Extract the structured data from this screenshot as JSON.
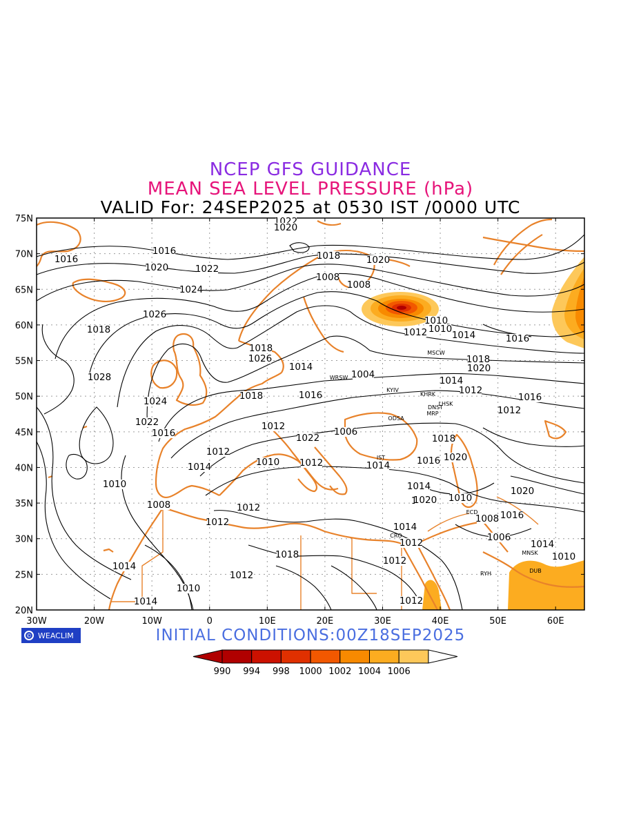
{
  "titles": {
    "line1": "NCEP GFS GUIDANCE",
    "line2": "MEAN SEA LEVEL PRESSURE (hPa)",
    "line3": "VALID For: 24SEP2025 at 0530 IST /0000 UTC"
  },
  "initial_conditions": "INITIAL  CONDITIONS:00Z18SEP2025",
  "logo_text": "WEACLIM",
  "colors": {
    "title1": "#8a2be2",
    "title2": "#e6147a",
    "coast": "#e8822a",
    "isobar": "#000000",
    "init": "#4a6ee0",
    "logo_bg": "#1f3fc4"
  },
  "axes": {
    "lat_labels": [
      "75N",
      "70N",
      "65N",
      "60N",
      "55N",
      "50N",
      "45N",
      "40N",
      "35N",
      "30N",
      "25N",
      "20N"
    ],
    "lon_labels": [
      "30W",
      "20W",
      "10W",
      "0",
      "10E",
      "20E",
      "30E",
      "40E",
      "50E",
      "60E"
    ]
  },
  "legend": {
    "labels": [
      "990",
      "994",
      "998",
      "1000",
      "1002",
      "1004",
      "1006"
    ],
    "colors": [
      "#b00000",
      "#cc1100",
      "#e03000",
      "#f25800",
      "#f88a00",
      "#fcac20",
      "#fdc85a"
    ]
  },
  "cities": [
    "MSCW",
    "WRSW",
    "KYIV",
    "KHRK",
    "DNST",
    "LHSK",
    "MRP",
    "ODSA",
    "IST",
    "CRO",
    "ECD",
    "MNSK",
    "DUB",
    "RYH"
  ],
  "isobar_labels": [
    "1022",
    "1020",
    "1016",
    "1016",
    "1020",
    "1022",
    "1024",
    "1018",
    "1026",
    "1018",
    "1020",
    "1018",
    "1028",
    "1026",
    "1024",
    "1022",
    "1016",
    "1018",
    "1012",
    "1010",
    "1016",
    "1014",
    "1004",
    "1006",
    "1008",
    "1008",
    "1010",
    "1010",
    "1012",
    "1014",
    "1016",
    "1018",
    "1020",
    "1014",
    "1012",
    "1016",
    "1012",
    "1022",
    "1012",
    "1014",
    "1012",
    "1018",
    "1020",
    "1016",
    "1014",
    "1018",
    "1020",
    "1014",
    "1012",
    "1010",
    "1020",
    "1016",
    "1008",
    "1006",
    "1014",
    "1010",
    "1012",
    "1012",
    "1010",
    "1014",
    "1012",
    "1018",
    "1012",
    "1008",
    "1012",
    "1014",
    "1010",
    "1014"
  ]
}
